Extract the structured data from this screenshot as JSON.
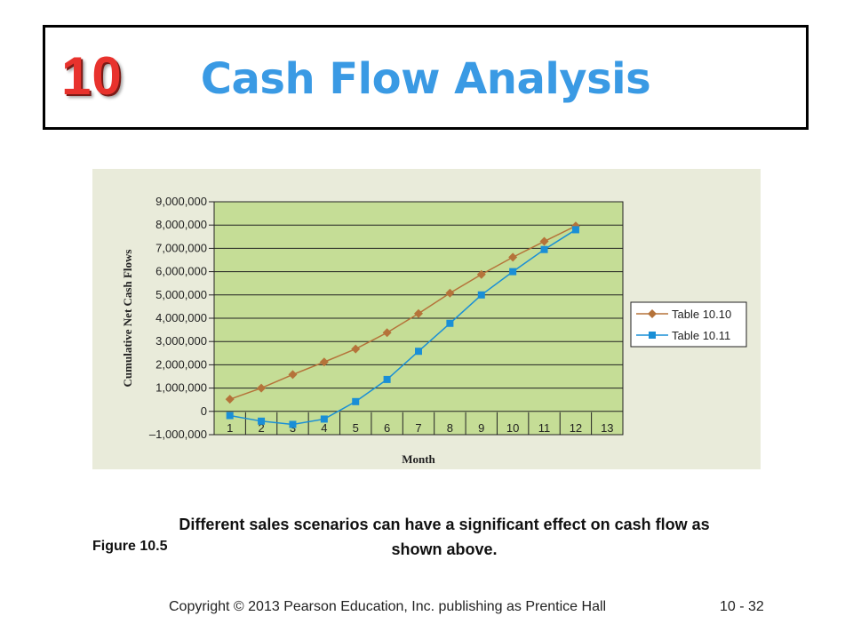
{
  "header": {
    "chapter_number": "10",
    "title": "Cash Flow Analysis"
  },
  "chart_data": {
    "type": "line",
    "title": "",
    "xlabel": "Month",
    "ylabel": "Cumulative Net Cash Flows",
    "x": [
      1,
      2,
      3,
      4,
      5,
      6,
      7,
      8,
      9,
      10,
      11,
      12
    ],
    "xticks": [
      "1",
      "2",
      "3",
      "4",
      "5",
      "6",
      "7",
      "8",
      "9",
      "10",
      "11",
      "12",
      "13"
    ],
    "xlim": [
      0.5,
      13.5
    ],
    "yticks": [
      "9,000,000",
      "8,000,000",
      "7,000,000",
      "6,000,000",
      "5,000,000",
      "4,000,000",
      "3,000,000",
      "2,000,000",
      "1,000,000",
      "0",
      "–1,000,000"
    ],
    "ytick_values": [
      9000000,
      8000000,
      7000000,
      6000000,
      5000000,
      4000000,
      3000000,
      2000000,
      1000000,
      0,
      -1000000
    ],
    "ylim": [
      -1000000,
      9000000
    ],
    "grid": "horizontal",
    "plot_background": "#c5dd96",
    "legend_position": "right",
    "series": [
      {
        "name": "Table 10.10",
        "color": "#b5733a",
        "marker": "diamond",
        "values": [
          520000,
          1000000,
          1580000,
          2120000,
          2680000,
          3380000,
          4200000,
          5080000,
          5880000,
          6620000,
          7300000,
          7960000
        ]
      },
      {
        "name": "Table 10.11",
        "color": "#1a8fd6",
        "marker": "square",
        "values": [
          -180000,
          -420000,
          -560000,
          -330000,
          420000,
          1370000,
          2580000,
          3780000,
          5000000,
          6000000,
          6950000,
          7800000
        ]
      }
    ]
  },
  "caption": "Different sales scenarios can have a significant effect on cash flow as shown above.",
  "figure_label": "Figure 10.5",
  "footer": {
    "copyright": "Copyright © 2013 Pearson Education, Inc. publishing as Prentice Hall",
    "page": "10 - 32"
  }
}
